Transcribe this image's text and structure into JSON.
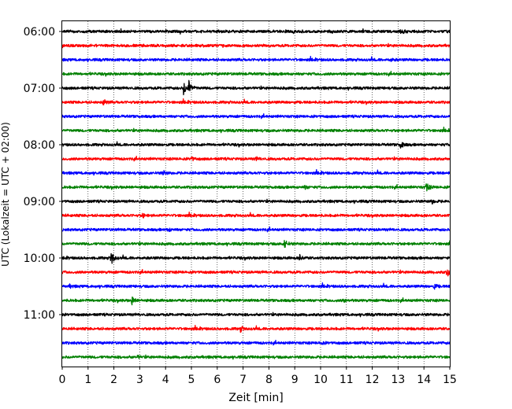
{
  "chart_data": {
    "type": "line",
    "title": "",
    "xlabel": "Zeit  [min]",
    "ylabel": "UTC (Lokalzeit = UTC + 02:00)",
    "xlim": [
      0,
      15
    ],
    "x_ticks": [
      "0",
      "1",
      "2",
      "3",
      "4",
      "5",
      "6",
      "7",
      "8",
      "9",
      "10",
      "11",
      "12",
      "13",
      "14",
      "15"
    ],
    "y_ticks": [
      "06:00",
      "07:00",
      "08:00",
      "09:00",
      "10:00",
      "11:00"
    ],
    "grid": "vertical-dotted",
    "legend": "none",
    "trace_interval_min": 15,
    "trace_colors": [
      "#000000",
      "#ff0000",
      "#0000ff",
      "#008000"
    ],
    "series": [
      {
        "start": "06:00",
        "events": [
          [
            13.1,
            0.3
          ]
        ]
      },
      {
        "start": "06:15",
        "events": []
      },
      {
        "start": "06:30",
        "events": [
          [
            12.7,
            0.2
          ]
        ]
      },
      {
        "start": "06:45",
        "events": []
      },
      {
        "start": "07:00",
        "events": [
          [
            4.7,
            0.9
          ],
          [
            4.9,
            1.0
          ]
        ]
      },
      {
        "start": "07:15",
        "events": [
          [
            1.6,
            0.4
          ]
        ]
      },
      {
        "start": "07:30",
        "events": []
      },
      {
        "start": "07:45",
        "events": []
      },
      {
        "start": "08:00",
        "events": [
          [
            13.1,
            0.5
          ]
        ]
      },
      {
        "start": "08:15",
        "events": [
          [
            5.0,
            0.25
          ],
          [
            7.5,
            0.2
          ]
        ]
      },
      {
        "start": "08:30",
        "events": [
          [
            3.9,
            0.3
          ]
        ]
      },
      {
        "start": "08:45",
        "events": [
          [
            14.1,
            0.6
          ],
          [
            9.4,
            0.2
          ]
        ]
      },
      {
        "start": "09:00",
        "events": [
          [
            14.3,
            0.3
          ]
        ]
      },
      {
        "start": "09:15",
        "events": [
          [
            3.1,
            0.3
          ]
        ]
      },
      {
        "start": "09:30",
        "events": [
          [
            4.1,
            0.25
          ]
        ]
      },
      {
        "start": "09:45",
        "events": [
          [
            8.6,
            0.7
          ]
        ]
      },
      {
        "start": "10:00",
        "events": [
          [
            1.9,
            1.0
          ],
          [
            9.2,
            0.4
          ]
        ]
      },
      {
        "start": "10:15",
        "events": [
          [
            14.9,
            0.6
          ]
        ]
      },
      {
        "start": "10:30",
        "events": [
          [
            14.4,
            0.3
          ],
          [
            0.3,
            0.2
          ]
        ]
      },
      {
        "start": "10:45",
        "events": [
          [
            2.7,
            0.5
          ],
          [
            10.9,
            0.2
          ]
        ]
      },
      {
        "start": "11:00",
        "events": []
      },
      {
        "start": "11:15",
        "events": [
          [
            6.9,
            0.35
          ]
        ]
      },
      {
        "start": "11:30",
        "events": [
          [
            10.0,
            0.2
          ]
        ]
      },
      {
        "start": "11:45",
        "events": [
          [
            2.9,
            0.2
          ]
        ]
      }
    ]
  }
}
